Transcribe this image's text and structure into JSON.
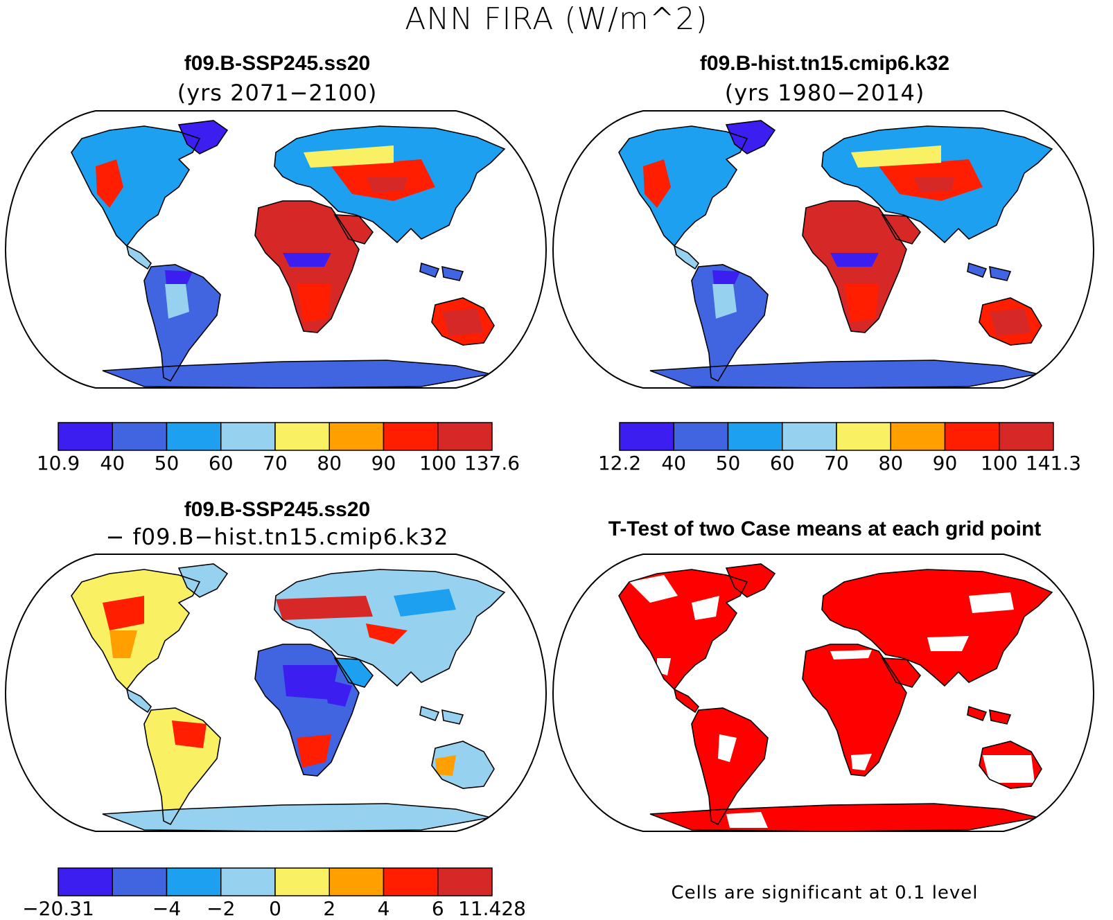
{
  "title": "ANN FIRA (W/m^2)",
  "panels": [
    {
      "id": "case",
      "title": "f09.B-SSP245.ss20",
      "subtitle": "(yrs 2071−2100)",
      "colorbar": {
        "labels": [
          "10.9",
          "40",
          "50",
          "60",
          "70",
          "80",
          "90",
          "100",
          "137.6"
        ],
        "colors": [
          "#3c1ef0",
          "#4164e1",
          "#1ea0f0",
          "#96d2f0",
          "#faf064",
          "#ff9f00",
          "#ff1e00",
          "#d72828"
        ]
      }
    },
    {
      "id": "control",
      "title": "f09.B-hist.tn15.cmip6.k32",
      "subtitle": "(yrs 1980−2014)",
      "colorbar": {
        "labels": [
          "12.2",
          "40",
          "50",
          "60",
          "70",
          "80",
          "90",
          "100",
          "141.3"
        ],
        "colors": [
          "#3c1ef0",
          "#4164e1",
          "#1ea0f0",
          "#96d2f0",
          "#faf064",
          "#ff9f00",
          "#ff1e00",
          "#d72828"
        ]
      }
    },
    {
      "id": "difference",
      "title": "f09.B-SSP245.ss20",
      "subtitle": "− f09.B−hist.tn15.cmip6.k32",
      "colorbar": {
        "labels": [
          "−20.31",
          "",
          "−4",
          "−2",
          "0",
          "2",
          "4",
          "6",
          "11.428"
        ],
        "colors": [
          "#3c1ef0",
          "#4164e1",
          "#1ea0f0",
          "#96d2f0",
          "#faf064",
          "#ff9f00",
          "#ff1e00",
          "#d72828"
        ]
      }
    },
    {
      "id": "ttest",
      "title": "T-Test of two Case means at each grid point",
      "footnote": "Cells are significant at 0.1 level",
      "fill_color": "#ff0000"
    }
  ]
}
